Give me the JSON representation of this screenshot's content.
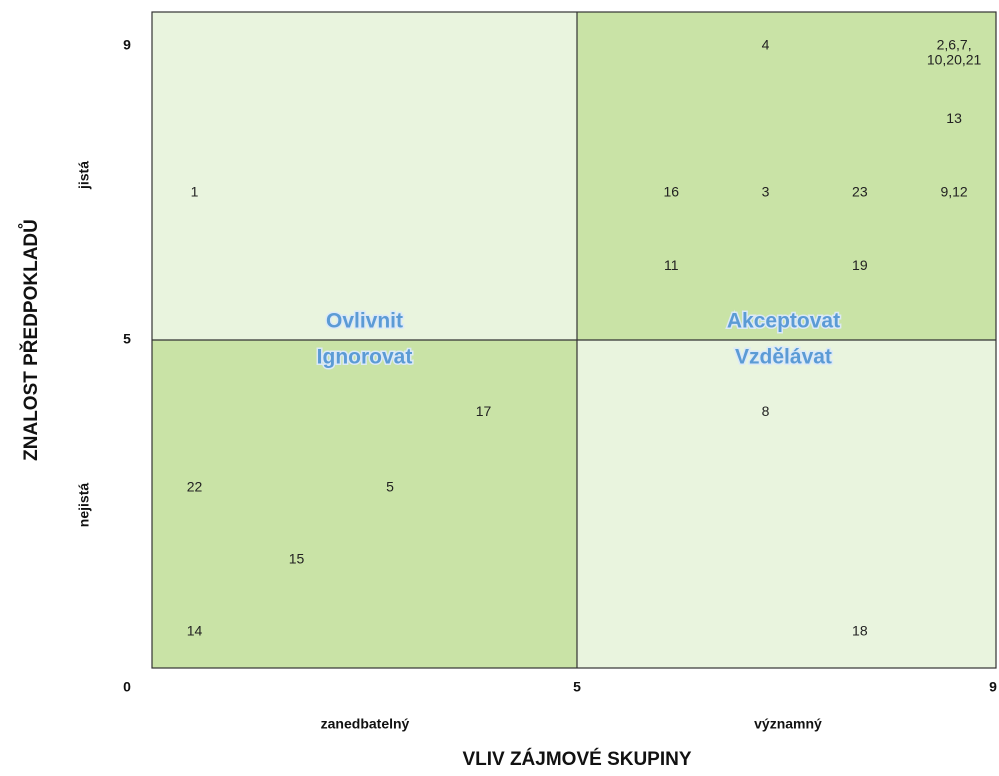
{
  "chart_data": {
    "type": "scatter",
    "xlabel": "VLIV ZÁJMOVÉ SKUPINY",
    "ylabel": "ZNALOST PŘEDPOKLADŮ",
    "xcategories": [
      "zanedbatelný",
      "významný"
    ],
    "ycategories": [
      "nejistá",
      "jistá"
    ],
    "xlim": [
      0,
      9
    ],
    "ylim": [
      0,
      9.5
    ],
    "xticks": [
      0,
      5,
      9
    ],
    "yticks": [
      5,
      9
    ],
    "quadrants": [
      {
        "label": "Ovlivnit",
        "color": "#e9f4de"
      },
      {
        "label": "Akceptovat",
        "color": "#c9e3a6"
      },
      {
        "label": "Ignorovat",
        "color": "#c9e3a6"
      },
      {
        "label": "Vzdělávat",
        "color": "#e9f4de"
      }
    ],
    "points": [
      {
        "label": "4",
        "x": 6.8,
        "y": 9
      },
      {
        "label": [
          "2,6,7,",
          "10,20,21"
        ],
        "x": 8.6,
        "y": 8.9
      },
      {
        "label": "13",
        "x": 8.6,
        "y": 8
      },
      {
        "label": "1",
        "x": 0.5,
        "y": 7
      },
      {
        "label": "16",
        "x": 5.9,
        "y": 7
      },
      {
        "label": "3",
        "x": 6.8,
        "y": 7
      },
      {
        "label": "23",
        "x": 7.7,
        "y": 7
      },
      {
        "label": "9,12",
        "x": 8.6,
        "y": 7
      },
      {
        "label": "11",
        "x": 5.9,
        "y": 6
      },
      {
        "label": "19",
        "x": 7.7,
        "y": 6
      },
      {
        "label": "17",
        "x": 3.9,
        "y": 3.9
      },
      {
        "label": "8",
        "x": 6.8,
        "y": 3.9
      },
      {
        "label": "22",
        "x": 0.5,
        "y": 2.75
      },
      {
        "label": "5",
        "x": 2.8,
        "y": 2.75
      },
      {
        "label": "15",
        "x": 1.7,
        "y": 1.65
      },
      {
        "label": "14",
        "x": 0.5,
        "y": 0.55
      },
      {
        "label": "18",
        "x": 7.7,
        "y": 0.55
      }
    ]
  }
}
